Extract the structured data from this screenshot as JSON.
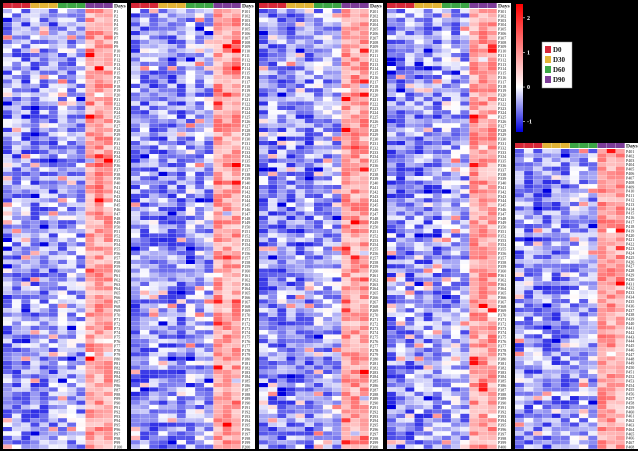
{
  "chart_data": {
    "type": "heatmap",
    "column_header": "Days",
    "groups": [
      {
        "name": "D0",
        "color": "#d62838"
      },
      {
        "name": "D30",
        "color": "#e2b436"
      },
      {
        "name": "D60",
        "color": "#3ca646"
      },
      {
        "name": "D90",
        "color": "#7d3c98"
      }
    ],
    "samples_per_group": 3,
    "color_scale": {
      "low": "#0000e0",
      "mid": "#ffffff",
      "high": "#ff0000",
      "ticks": [
        "2",
        "1",
        "0",
        "-1"
      ],
      "tick_values": [
        2,
        1,
        0,
        -1
      ],
      "range": [
        -1.3,
        2.4
      ]
    },
    "panels": [
      {
        "row_start": 1,
        "row_end": 100,
        "label_interval": 1
      },
      {
        "row_start": 101,
        "row_end": 200,
        "label_interval": 1
      },
      {
        "row_start": 201,
        "row_end": 300,
        "label_interval": 1
      },
      {
        "row_start": 301,
        "row_end": 400,
        "label_interval": 1
      },
      {
        "row_start": 401,
        "row_end": 468,
        "label_interval": 1
      }
    ],
    "values_note": "cell values are z-scores of proteins P1..P468 across 12 samples (D0, D30, D60, D90 x3)",
    "row_label_prefix": "P"
  }
}
